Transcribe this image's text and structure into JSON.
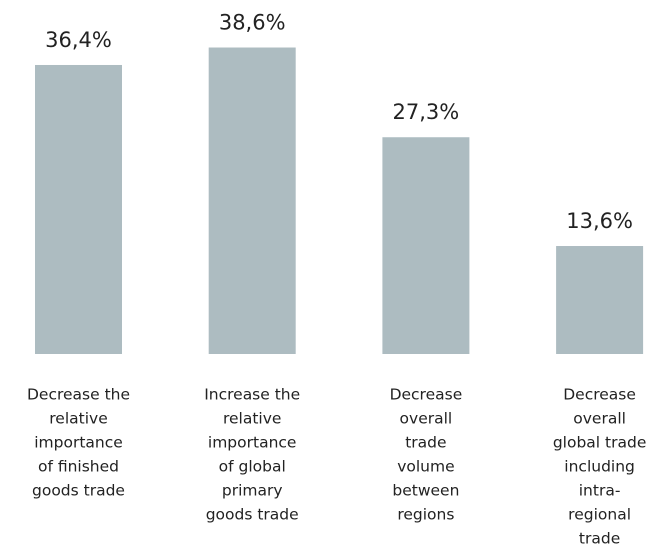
{
  "chart_data": {
    "type": "bar",
    "categories": [
      [
        "Decrease the",
        "relative",
        "importance",
        "of finished",
        "goods trade"
      ],
      [
        "Increase the",
        "relative",
        "importance",
        "of global",
        "primary",
        "goods trade"
      ],
      [
        "Decrease",
        "overall",
        "trade",
        "volume",
        "between",
        "regions"
      ],
      [
        "Decrease",
        "overall",
        "global trade",
        "including",
        "intra-",
        "regional",
        "trade"
      ]
    ],
    "values": [
      36.4,
      38.6,
      27.3,
      13.6
    ],
    "value_labels": [
      "36,4%",
      "38,6%",
      "27,3%",
      "13,6%"
    ],
    "color": "#adbcc1"
  }
}
